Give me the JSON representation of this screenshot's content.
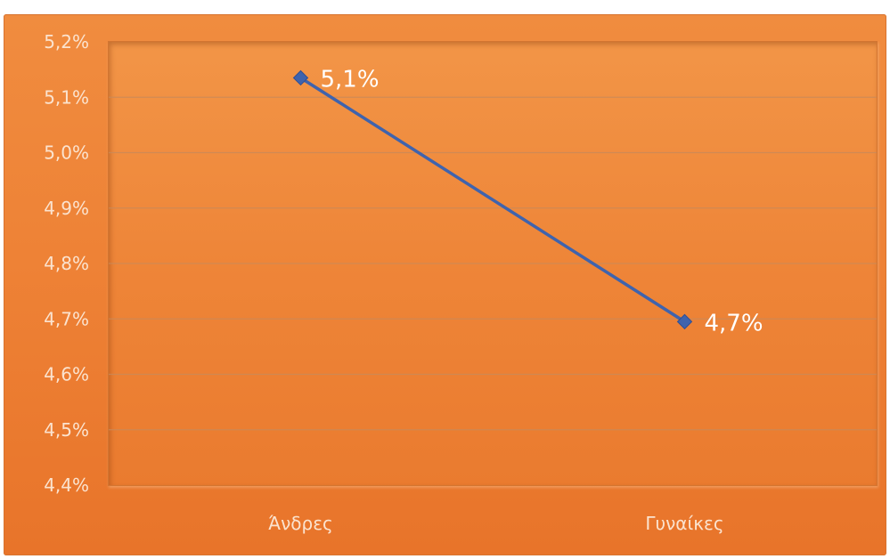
{
  "chart_data": {
    "type": "line",
    "categories": [
      "Άνδρες",
      "Γυναίκες"
    ],
    "series": [
      {
        "values": [
          5.135,
          4.695
        ],
        "labels": [
          "5,1%",
          "4,7%"
        ],
        "color": "#3f63ad"
      }
    ],
    "ylim": [
      4.4,
      5.2
    ],
    "yticks": [
      "4,4%",
      "4,5%",
      "4,6%",
      "4,7%",
      "4,8%",
      "4,9%",
      "5,0%",
      "5,1%",
      "5,2%"
    ],
    "grid": true,
    "legend": "none",
    "colors": {
      "background": "#ee8236",
      "gridline": "#c98a5a",
      "tick_text": "#fbe3cf",
      "data_label_text": "#ffffff"
    }
  }
}
